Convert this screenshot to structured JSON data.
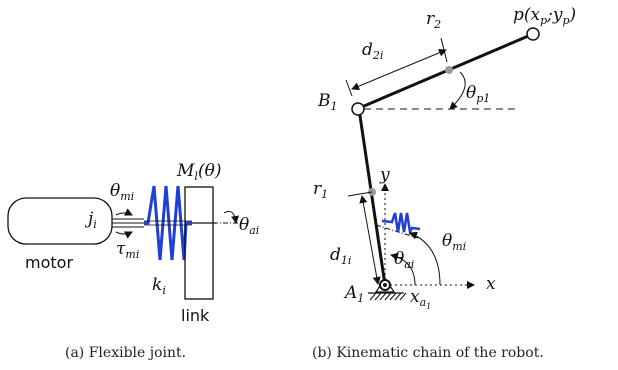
{
  "panel_a": {
    "motor_label": "motor",
    "link_label": "link",
    "inertia_label": "j",
    "inertia_sub": "i",
    "theta_m_label": "θ",
    "theta_m_sub": "mi",
    "tau_label": "τ",
    "tau_sub": "mi",
    "spring_label": "k",
    "spring_sub": "i",
    "mass_label": "M",
    "mass_sub": "l",
    "mass_arg": "(θ)",
    "theta_a_label": "θ",
    "theta_a_sub": "ai",
    "caption": "(a) Flexible joint."
  },
  "panel_b": {
    "point_p": "p(x",
    "point_p_sub1": "p",
    "point_p_mid": ";y",
    "point_p_sub2": "p",
    "point_p_end": ")",
    "r2_label": "r",
    "r2_sub": "2",
    "d2_label": "d",
    "d2_sub": "2i",
    "theta_p_label": "θ",
    "theta_p_sub": "p1",
    "b1_label": "B",
    "b1_sub": "1",
    "y_label": "y",
    "r1_label": "r",
    "r1_sub": "1",
    "d1_label": "d",
    "d1_sub": "1i",
    "theta_mi_label": "θ",
    "theta_mi_sub": "mi",
    "theta_ai_label": "θ",
    "theta_ai_sub": "ai",
    "x_label": "x",
    "a1_label": "A",
    "a1_sub": "1",
    "xa_label": "x",
    "xa_sub": "a",
    "xa_subsub": "1",
    "caption": "(b) Kinematic chain of the robot."
  },
  "colors": {
    "spring": "#1f3fd6",
    "joint_dot": "#999999",
    "line": "#111111"
  }
}
